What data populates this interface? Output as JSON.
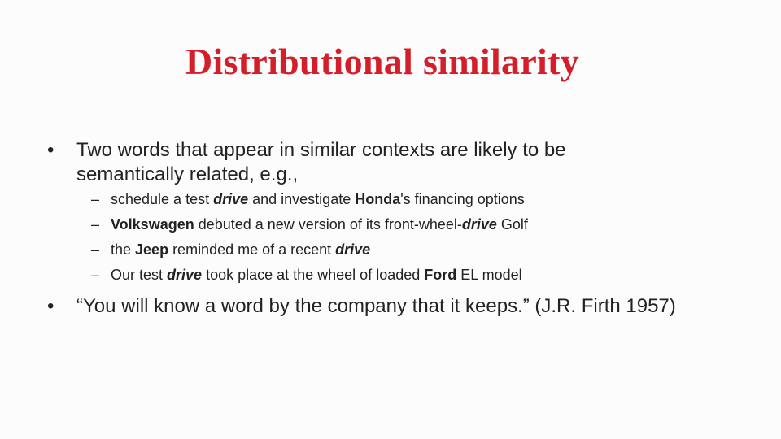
{
  "slide": {
    "title": "Distributional similarity",
    "colors": {
      "title": "#d41f2b",
      "text": "#222222",
      "background": "#fcfcfc"
    },
    "bullets": [
      {
        "marker": "•",
        "text": "Two words that appear in similar contexts are likely to be semantically related, e.g.,",
        "subitems": [
          {
            "marker": "–",
            "parts": [
              {
                "text": "schedule a test ",
                "style": "normal"
              },
              {
                "text": "drive",
                "style": "bold-italic"
              },
              {
                "text": " and investigate ",
                "style": "normal"
              },
              {
                "text": "Honda",
                "style": "bold"
              },
              {
                "text": "'s financing options",
                "style": "normal"
              }
            ]
          },
          {
            "marker": "–",
            "parts": [
              {
                "text": "Volkswagen",
                "style": "bold"
              },
              {
                "text": " debuted a new version of its front-wheel-",
                "style": "normal"
              },
              {
                "text": "drive",
                "style": "bold-italic"
              },
              {
                "text": " Golf",
                "style": "normal"
              }
            ]
          },
          {
            "marker": "–",
            "parts": [
              {
                "text": "the ",
                "style": "normal"
              },
              {
                "text": "Jeep",
                "style": "bold"
              },
              {
                "text": " reminded me of a recent ",
                "style": "normal"
              },
              {
                "text": "drive",
                "style": "bold-italic"
              }
            ]
          },
          {
            "marker": "–",
            "parts": [
              {
                "text": "Our test ",
                "style": "normal"
              },
              {
                "text": "drive",
                "style": "bold-italic"
              },
              {
                "text": " took place at the wheel of loaded ",
                "style": "normal"
              },
              {
                "text": "Ford",
                "style": "bold"
              },
              {
                "text": " EL model",
                "style": "normal"
              }
            ]
          }
        ]
      },
      {
        "marker": "•",
        "text": "“You will know a word by the company that it keeps.” (J.R. Firth 1957)"
      }
    ]
  }
}
